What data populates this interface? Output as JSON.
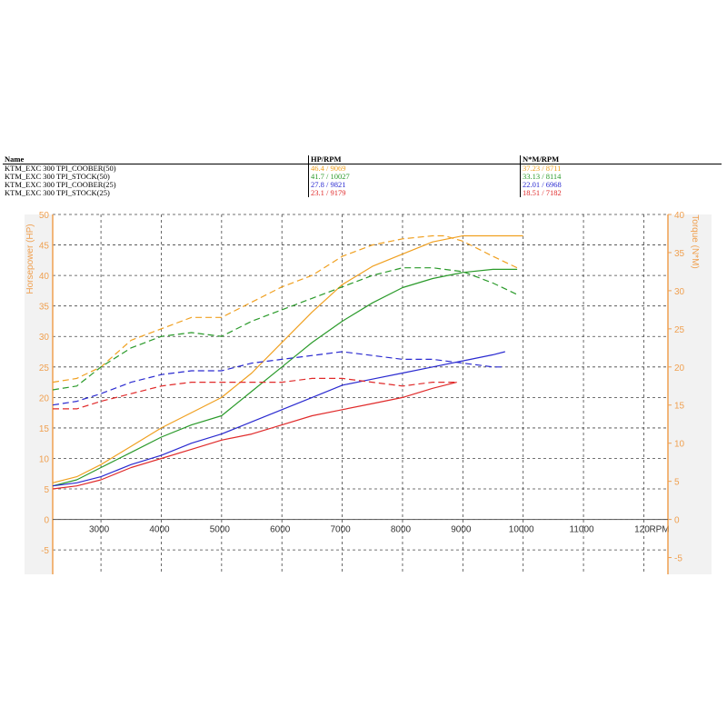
{
  "colors": {
    "KTM_EXC 300 TPI_COOBER(50)": "#f0a020",
    "KTM_EXC 300 TPI_STOCK(50)": "#2a9a2a",
    "KTM_EXC 300 TPI_COOBER(25)": "#2a2ad0",
    "KTM_EXC 300 TPI_STOCK(25)": "#e02a2a",
    "axis_label": "#f0a050",
    "plot_bg": "#f2f2f2"
  },
  "legend": {
    "headers": {
      "name": "Name",
      "hp": "HP/RPM",
      "nm": "N*M/RPM"
    },
    "rows": [
      {
        "name": "KTM_EXC 300 TPI_COOBER(50)",
        "hp": "46.4",
        "hp_rpm": "9069",
        "nm": "37.23",
        "nm_rpm": "8711"
      },
      {
        "name": "KTM_EXC 300 TPI_STOCK(50)",
        "hp": "41.7",
        "hp_rpm": "10027",
        "nm": "33.13",
        "nm_rpm": "8114"
      },
      {
        "name": "KTM_EXC 300 TPI_COOBER(25)",
        "hp": "27.8",
        "hp_rpm": "9821",
        "nm": "22.01",
        "nm_rpm": "6968"
      },
      {
        "name": "KTM_EXC 300 TPI_STOCK(25)",
        "hp": "23.1",
        "hp_rpm": "9179",
        "nm": "18.51",
        "nm_rpm": "7182"
      }
    ]
  },
  "chart_data": {
    "type": "line",
    "xlabel": "RPM",
    "ylabel": "Horsepower (HP)",
    "y2label": "Torque (N*M)",
    "xlim": [
      2200,
      12400
    ],
    "ylim": [
      -9,
      50
    ],
    "y2lim": [
      -7.2,
      40
    ],
    "x_ticks": [
      "3000",
      "4000",
      "5000",
      "6000",
      "7000",
      "8000",
      "9000",
      "10000",
      "11000",
      "120"
    ],
    "y_ticks": [
      "-5",
      "0",
      "5",
      "10",
      "15",
      "20",
      "25",
      "30",
      "35",
      "40",
      "45",
      "50"
    ],
    "y2_ticks": [
      "-5",
      "0",
      "5",
      "10",
      "15",
      "20",
      "25",
      "30",
      "35",
      "40"
    ],
    "grid": true,
    "series": [
      {
        "name": "KTM_EXC 300 TPI_COOBER(50)",
        "kind": "HP",
        "axis": "left",
        "x": [
          2200,
          2600,
          3000,
          3500,
          4000,
          4500,
          5000,
          5500,
          6000,
          6500,
          7000,
          7500,
          8000,
          8500,
          9000,
          9500,
          10000
        ],
        "y": [
          6,
          7,
          9,
          12,
          15,
          17.5,
          20,
          24,
          29,
          34,
          38.5,
          41.5,
          43.5,
          45.5,
          46.5,
          46.5,
          46.5
        ]
      },
      {
        "name": "KTM_EXC 300 TPI_STOCK(50)",
        "kind": "HP",
        "axis": "left",
        "x": [
          2200,
          2600,
          3000,
          3500,
          4000,
          4500,
          5000,
          5500,
          6000,
          6500,
          7000,
          7500,
          8000,
          8500,
          9000,
          9500,
          9900
        ],
        "y": [
          5.5,
          6.5,
          8.5,
          11,
          13.5,
          15.5,
          17,
          21,
          25,
          29,
          32.5,
          35.5,
          38,
          39.5,
          40.5,
          41,
          41
        ]
      },
      {
        "name": "KTM_EXC 300 TPI_COOBER(25)",
        "kind": "HP",
        "axis": "left",
        "x": [
          2200,
          2600,
          3000,
          3500,
          4000,
          4500,
          5000,
          5500,
          6000,
          6500,
          7000,
          7500,
          8000,
          8500,
          9000,
          9500,
          9700
        ],
        "y": [
          5.5,
          6,
          7,
          9,
          10.5,
          12.5,
          14,
          16,
          18,
          20,
          22,
          23,
          24,
          25,
          26,
          27,
          27.5
        ]
      },
      {
        "name": "KTM_EXC 300 TPI_STOCK(25)",
        "kind": "HP",
        "axis": "left",
        "x": [
          2200,
          2600,
          3000,
          3500,
          4000,
          4500,
          5000,
          5500,
          6000,
          6500,
          7000,
          7500,
          8000,
          8500,
          8900
        ],
        "y": [
          5,
          5.5,
          6.5,
          8.5,
          10,
          11.5,
          13,
          14,
          15.5,
          17,
          18,
          19,
          20,
          21.5,
          22.5
        ]
      },
      {
        "name": "KTM_EXC 300 TPI_COOBER(50)",
        "kind": "Torque",
        "axis": "right",
        "x": [
          2200,
          2600,
          3000,
          3500,
          4000,
          4500,
          5000,
          5500,
          6000,
          6500,
          7000,
          7500,
          8000,
          8500,
          8700,
          9000,
          9500,
          9900
        ],
        "y": [
          18,
          18.5,
          20,
          23.5,
          25,
          26.5,
          26.5,
          28.5,
          30.5,
          32,
          34.5,
          36,
          36.8,
          37.2,
          37.2,
          36.5,
          34.5,
          33
        ]
      },
      {
        "name": "KTM_EXC 300 TPI_STOCK(50)",
        "kind": "Torque",
        "axis": "right",
        "x": [
          2200,
          2600,
          3000,
          3500,
          4000,
          4500,
          5000,
          5500,
          6000,
          6500,
          7000,
          7500,
          8000,
          8500,
          9000,
          9500,
          9900
        ],
        "y": [
          17,
          17.5,
          20,
          22.5,
          24,
          24.5,
          24,
          26,
          27.5,
          29,
          30.5,
          32,
          33,
          33,
          32.5,
          31,
          29.5
        ]
      },
      {
        "name": "KTM_EXC 300 TPI_COOBER(25)",
        "kind": "Torque",
        "axis": "right",
        "x": [
          2200,
          2600,
          3000,
          3500,
          4000,
          4500,
          5000,
          5500,
          6000,
          6500,
          7000,
          7500,
          8000,
          8500,
          9000,
          9500,
          9700
        ],
        "y": [
          15,
          15.5,
          16.5,
          18,
          19,
          19.5,
          19.5,
          20.5,
          21,
          21.5,
          22,
          21.5,
          21,
          21,
          20.5,
          20,
          20
        ]
      },
      {
        "name": "KTM_EXC 300 TPI_STOCK(25)",
        "kind": "Torque",
        "axis": "right",
        "x": [
          2200,
          2600,
          3000,
          3500,
          4000,
          4500,
          5000,
          5500,
          6000,
          6500,
          7000,
          7500,
          8000,
          8500,
          8900
        ],
        "y": [
          14.5,
          14.5,
          15.5,
          16.5,
          17.5,
          18,
          18,
          18,
          18,
          18.5,
          18.5,
          18,
          17.5,
          18,
          18
        ]
      }
    ]
  }
}
